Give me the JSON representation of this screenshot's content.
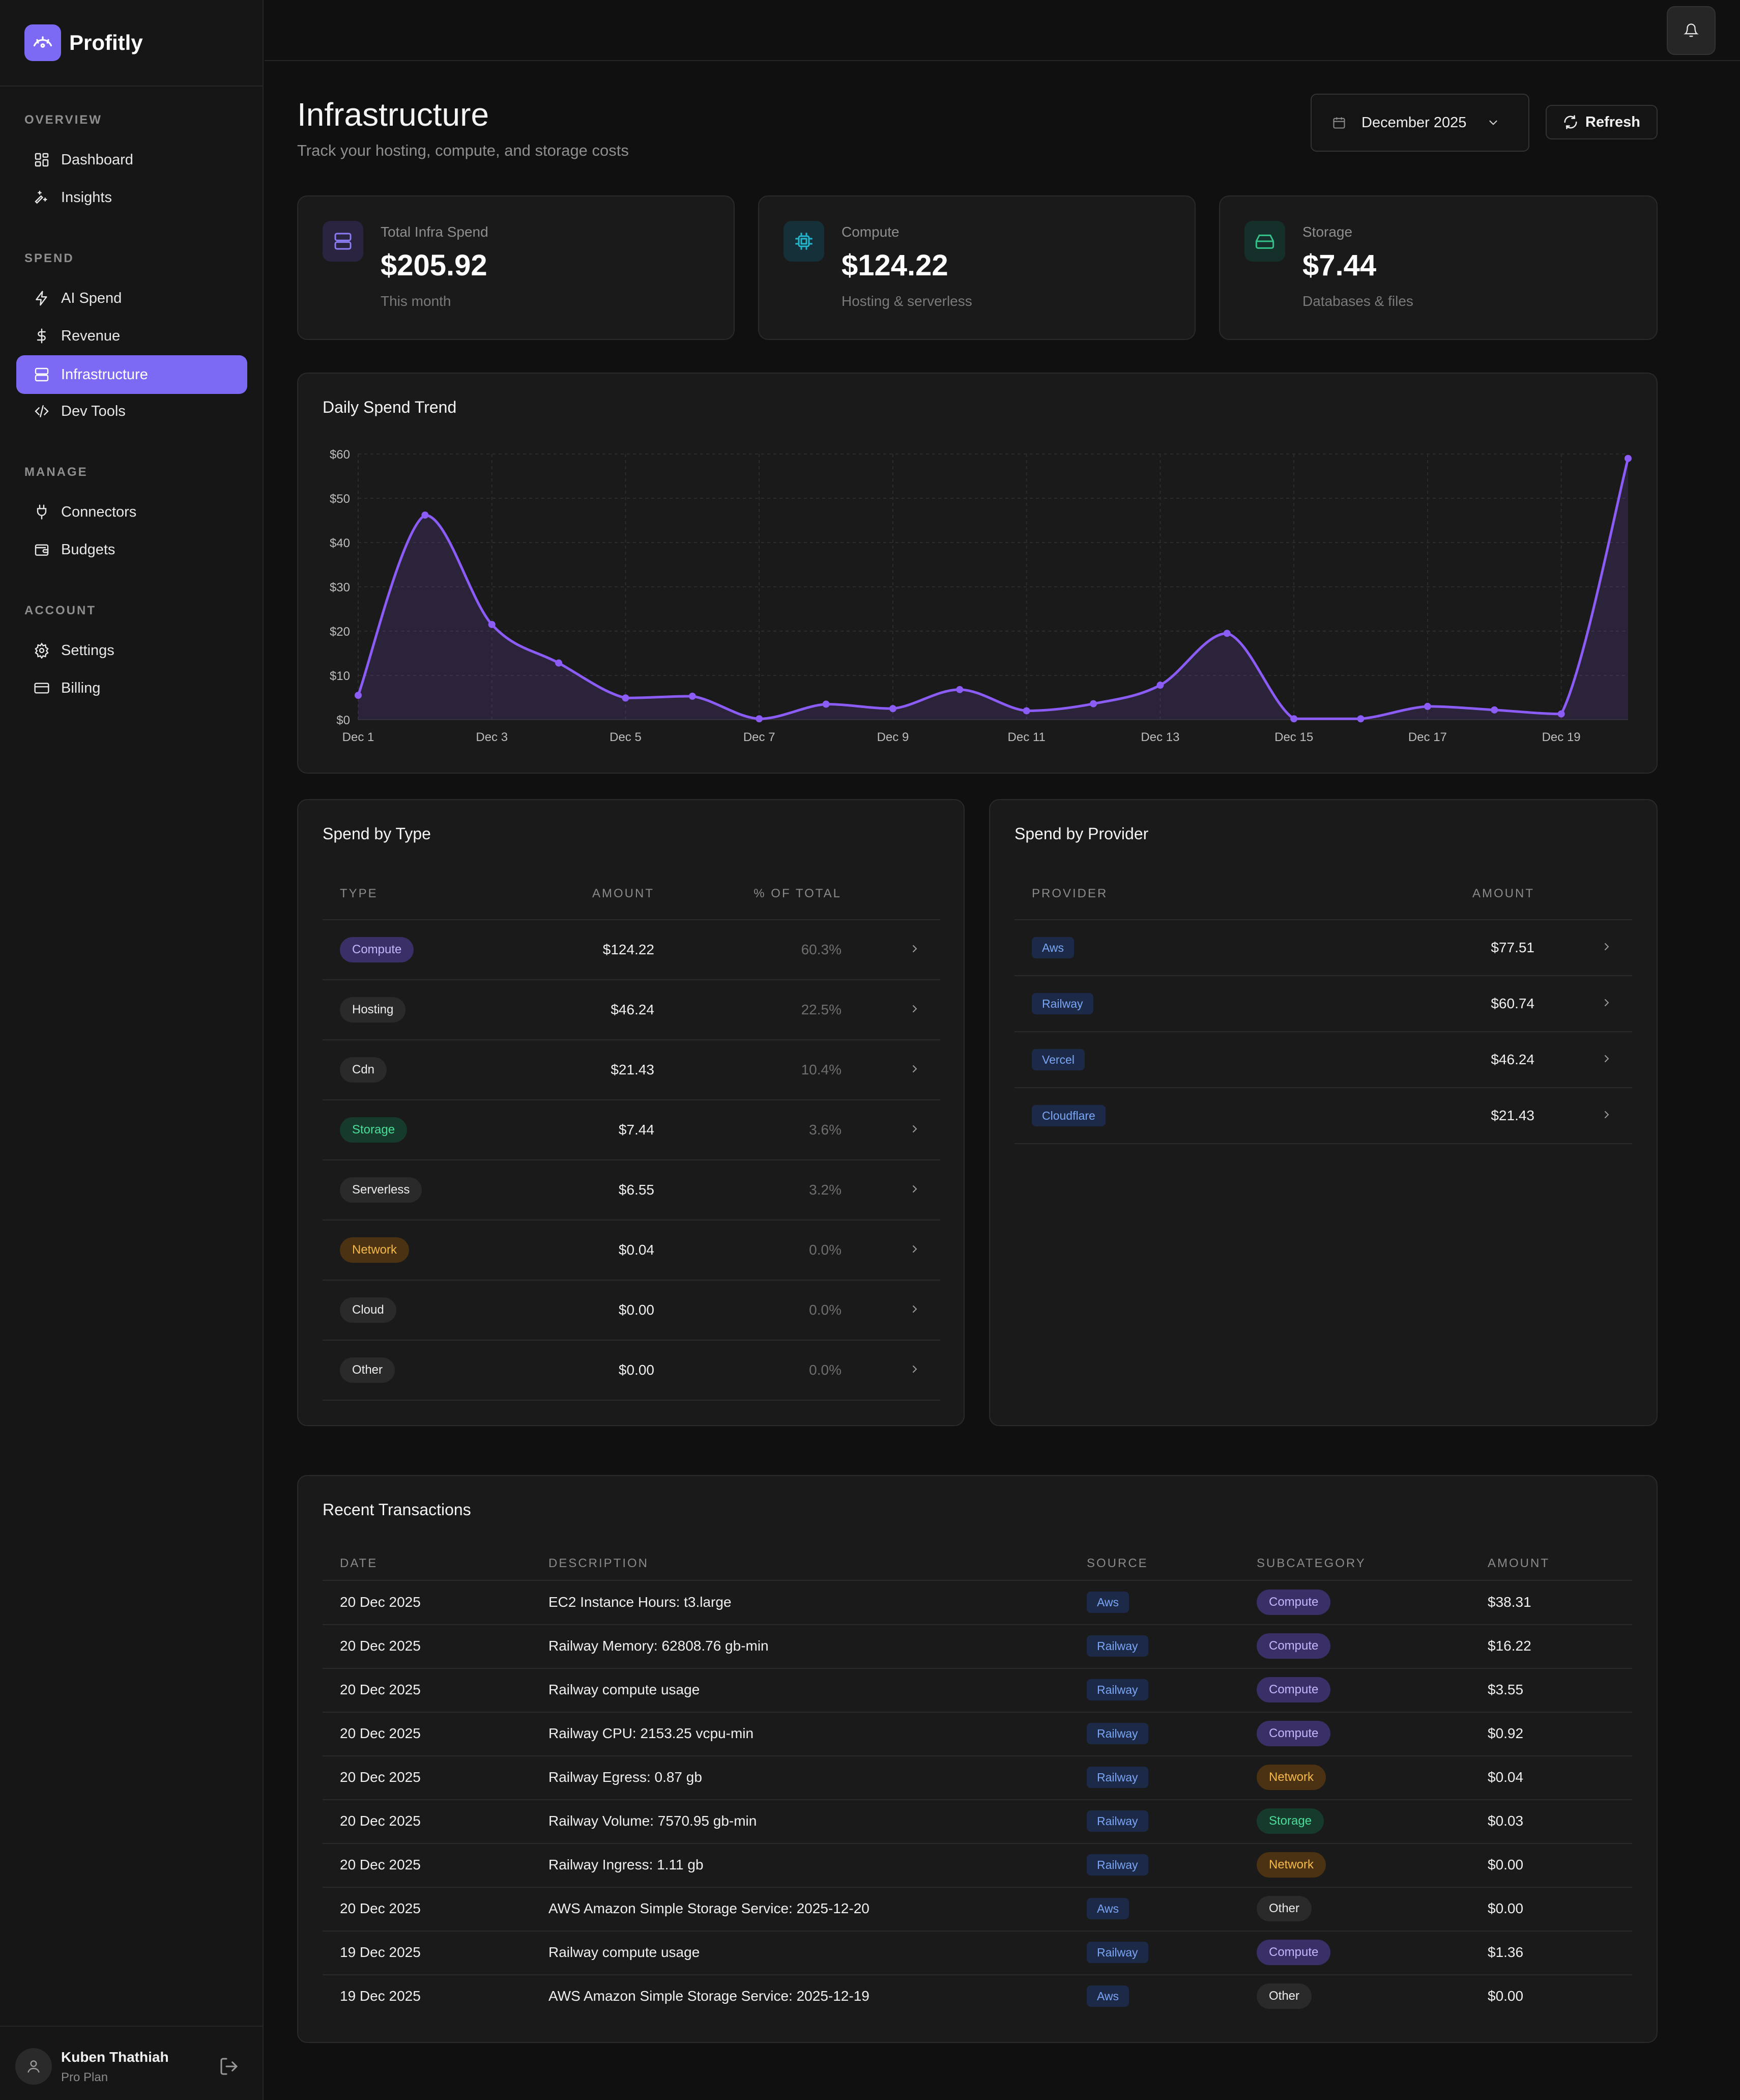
{
  "app": {
    "name": "Profitly"
  },
  "sidebar": {
    "sections": [
      {
        "title": "OVERVIEW",
        "items": [
          {
            "label": "Dashboard",
            "icon": "grid-icon"
          },
          {
            "label": "Insights",
            "icon": "sparkles-icon"
          }
        ]
      },
      {
        "title": "SPEND",
        "items": [
          {
            "label": "AI Spend",
            "icon": "bolt-icon"
          },
          {
            "label": "Revenue",
            "icon": "dollar-icon"
          },
          {
            "label": "Infrastructure",
            "icon": "server-icon",
            "active": true
          },
          {
            "label": "Dev Tools",
            "icon": "code-icon"
          }
        ]
      },
      {
        "title": "MANAGE",
        "items": [
          {
            "label": "Connectors",
            "icon": "plug-icon"
          },
          {
            "label": "Budgets",
            "icon": "wallet-icon"
          }
        ]
      },
      {
        "title": "ACCOUNT",
        "items": [
          {
            "label": "Settings",
            "icon": "gear-icon"
          },
          {
            "label": "Billing",
            "icon": "card-icon"
          }
        ]
      }
    ],
    "user": {
      "name": "Kuben Thathiah",
      "plan": "Pro Plan"
    }
  },
  "header": {
    "title": "Infrastructure",
    "subtitle": "Track your hosting, compute, and storage costs",
    "month": "December 2025",
    "refresh_label": "Refresh"
  },
  "stats": [
    {
      "label": "Total Infra Spend",
      "value": "$205.92",
      "sub": "This month",
      "icon": "server-icon",
      "color": "#8b7cf6"
    },
    {
      "label": "Compute",
      "value": "$124.22",
      "sub": "Hosting & serverless",
      "icon": "cpu-icon",
      "color": "#22b8cf"
    },
    {
      "label": "Storage",
      "value": "$7.44",
      "sub": "Databases & files",
      "icon": "hard-drive-icon",
      "color": "#34c28a"
    }
  ],
  "chart": {
    "title": "Daily Spend Trend",
    "chart_data": {
      "type": "area",
      "title": "Daily Spend Trend",
      "xlabel": "",
      "ylabel": "",
      "categories": [
        "Dec 1",
        "Dec 2",
        "Dec 3",
        "Dec 4",
        "Dec 5",
        "Dec 6",
        "Dec 7",
        "Dec 8",
        "Dec 9",
        "Dec 10",
        "Dec 11",
        "Dec 12",
        "Dec 13",
        "Dec 14",
        "Dec 15",
        "Dec 16",
        "Dec 17",
        "Dec 18",
        "Dec 19",
        "Dec 20"
      ],
      "x_tick_labels": [
        "Dec 1",
        "Dec 3",
        "Dec 5",
        "Dec 7",
        "Dec 9",
        "Dec 11",
        "Dec 13",
        "Dec 15",
        "Dec 17",
        "Dec 19"
      ],
      "y_tick_labels": [
        "$0",
        "$10",
        "$20",
        "$30",
        "$40",
        "$50",
        "$60"
      ],
      "values": [
        5.5,
        46.2,
        21.5,
        12.8,
        4.9,
        5.3,
        0.2,
        3.5,
        2.5,
        6.8,
        2.0,
        3.6,
        7.8,
        19.5,
        0.2,
        0.2,
        3.0,
        2.2,
        1.3,
        59.0
      ],
      "ylim": [
        0,
        60
      ],
      "grid": true,
      "color": "#8b5cf6"
    }
  },
  "spend_by_type": {
    "title": "Spend by Type",
    "headers": [
      "TYPE",
      "AMOUNT",
      "% OF TOTAL"
    ],
    "rows": [
      {
        "type": "Compute",
        "amount": "$124.22",
        "pct": "60.3%",
        "style": "purple"
      },
      {
        "type": "Hosting",
        "amount": "$46.24",
        "pct": "22.5%",
        "style": "gray"
      },
      {
        "type": "Cdn",
        "amount": "$21.43",
        "pct": "10.4%",
        "style": "gray"
      },
      {
        "type": "Storage",
        "amount": "$7.44",
        "pct": "3.6%",
        "style": "green"
      },
      {
        "type": "Serverless",
        "amount": "$6.55",
        "pct": "3.2%",
        "style": "gray"
      },
      {
        "type": "Network",
        "amount": "$0.04",
        "pct": "0.0%",
        "style": "orange"
      },
      {
        "type": "Cloud",
        "amount": "$0.00",
        "pct": "0.0%",
        "style": "gray"
      },
      {
        "type": "Other",
        "amount": "$0.00",
        "pct": "0.0%",
        "style": "gray"
      }
    ]
  },
  "spend_by_provider": {
    "title": "Spend by Provider",
    "headers": [
      "PROVIDER",
      "AMOUNT"
    ],
    "rows": [
      {
        "provider": "Aws",
        "amount": "$77.51"
      },
      {
        "provider": "Railway",
        "amount": "$60.74"
      },
      {
        "provider": "Vercel",
        "amount": "$46.24"
      },
      {
        "provider": "Cloudflare",
        "amount": "$21.43"
      }
    ]
  },
  "transactions": {
    "title": "Recent Transactions",
    "headers": [
      "DATE",
      "DESCRIPTION",
      "SOURCE",
      "SUBCATEGORY",
      "AMOUNT"
    ],
    "rows": [
      {
        "date": "20 Dec 2025",
        "description": "EC2 Instance Hours: t3.large",
        "source": "Aws",
        "subcategory": "Compute",
        "sub_style": "purple",
        "amount": "$38.31"
      },
      {
        "date": "20 Dec 2025",
        "description": "Railway Memory: 62808.76 gb-min",
        "source": "Railway",
        "subcategory": "Compute",
        "sub_style": "purple",
        "amount": "$16.22"
      },
      {
        "date": "20 Dec 2025",
        "description": "Railway compute usage",
        "source": "Railway",
        "subcategory": "Compute",
        "sub_style": "purple",
        "amount": "$3.55"
      },
      {
        "date": "20 Dec 2025",
        "description": "Railway CPU: 2153.25 vcpu-min",
        "source": "Railway",
        "subcategory": "Compute",
        "sub_style": "purple",
        "amount": "$0.92"
      },
      {
        "date": "20 Dec 2025",
        "description": "Railway Egress: 0.87 gb",
        "source": "Railway",
        "subcategory": "Network",
        "sub_style": "orange",
        "amount": "$0.04"
      },
      {
        "date": "20 Dec 2025",
        "description": "Railway Volume: 7570.95 gb-min",
        "source": "Railway",
        "subcategory": "Storage",
        "sub_style": "green",
        "amount": "$0.03"
      },
      {
        "date": "20 Dec 2025",
        "description": "Railway Ingress: 1.11 gb",
        "source": "Railway",
        "subcategory": "Network",
        "sub_style": "orange",
        "amount": "$0.00"
      },
      {
        "date": "20 Dec 2025",
        "description": "AWS Amazon Simple Storage Service: 2025-12-20",
        "source": "Aws",
        "subcategory": "Other",
        "sub_style": "gray",
        "amount": "$0.00"
      },
      {
        "date": "19 Dec 2025",
        "description": "Railway compute usage",
        "source": "Railway",
        "subcategory": "Compute",
        "sub_style": "purple",
        "amount": "$1.36"
      },
      {
        "date": "19 Dec 2025",
        "description": "AWS Amazon Simple Storage Service: 2025-12-19",
        "source": "Aws",
        "subcategory": "Other",
        "sub_style": "gray",
        "amount": "$0.00"
      }
    ]
  },
  "colors": {
    "accent": "#7c6af5",
    "pill_purple_bg": "#3a2f66",
    "pill_purple_fg": "#c4b5fd",
    "pill_green_bg": "#163a2c",
    "pill_green_fg": "#4ade9a",
    "pill_orange_bg": "#4a3212",
    "pill_orange_fg": "#f5b84a",
    "pill_gray_bg": "#2a2a2a",
    "pill_gray_fg": "#ededed",
    "src_bg": "#1c2a48",
    "src_fg": "#7aa5f5"
  }
}
